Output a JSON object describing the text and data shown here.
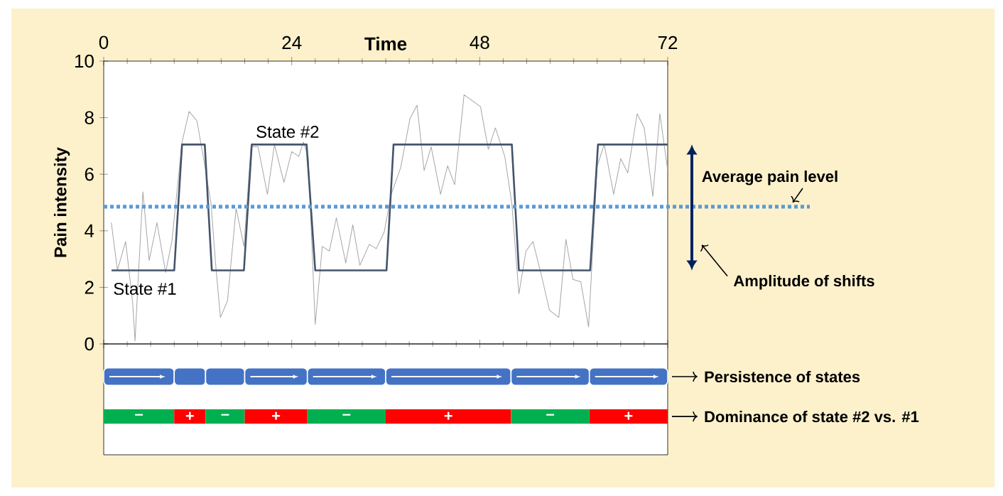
{
  "chart_data": [
    {
      "type": "line",
      "xlabel": "Time",
      "ylabel": "Pain intensity",
      "xlim": [
        0,
        72
      ],
      "xticks": [
        0,
        24,
        48,
        72
      ],
      "ylim": [
        0,
        10
      ],
      "yticks": [
        0,
        2,
        4,
        6,
        8,
        10
      ],
      "series": [
        {
          "color": "#a6a6a6",
          "x": [
            0.97,
            1.75,
            2.8,
            3.7,
            4.0,
            4.3,
            5.0,
            5.8,
            6.8,
            7.9,
            8.7,
            10.0,
            10.9,
            11.9,
            12.8,
            13.7,
            14.3,
            14.9,
            15.8,
            16.9,
            17.9,
            18.8,
            19.7,
            20.9,
            21.8,
            23.0,
            24.0,
            24.9,
            25.5,
            26.1,
            27.0,
            27.9,
            28.8,
            29.7,
            30.9,
            31.8,
            32.7,
            33.9,
            34.8,
            35.8,
            36.7,
            37.9,
            39.1,
            40.0,
            40.9,
            41.8,
            43.0,
            43.9,
            44.8,
            46.0,
            48.1,
            49.1,
            50.0,
            51.2,
            52.1,
            53.0,
            53.9,
            54.8,
            56.0,
            56.9,
            58.1,
            59.0,
            59.9,
            60.9,
            61.9,
            63.0,
            63.9,
            65.1,
            66.0,
            66.9,
            68.1,
            69.0,
            70.1,
            71.0,
            72.0
          ],
          "values": [
            4.29,
            2.61,
            3.62,
            1.44,
            0.1,
            1.77,
            5.38,
            2.95,
            4.29,
            2.53,
            3.62,
            7.14,
            8.22,
            7.89,
            6.47,
            4.96,
            2.78,
            0.94,
            1.52,
            4.79,
            3.45,
            6.97,
            6.97,
            5.29,
            7.05,
            5.71,
            6.8,
            6.63,
            7.14,
            6.63,
            0.69,
            3.45,
            3.28,
            4.46,
            2.86,
            4.21,
            2.78,
            3.52,
            3.37,
            3.95,
            5.29,
            6.22,
            7.97,
            8.44,
            6.13,
            6.97,
            5.29,
            6.3,
            5.63,
            8.81,
            8.39,
            6.88,
            7.64,
            6.63,
            4.96,
            1.77,
            3.28,
            3.62,
            2.28,
            1.19,
            0.94,
            3.7,
            2.28,
            2.2,
            0.6,
            6.3,
            7.05,
            5.29,
            6.55,
            6.05,
            8.14,
            7.64,
            5.21,
            8.14,
            6.13
          ]
        },
        {
          "color": "#44546a",
          "x": [
            1,
            9,
            10,
            12.9,
            13.8,
            17.9,
            18.9,
            25.9,
            27,
            36.1,
            37,
            52.1,
            53,
            62.1,
            63.1,
            72
          ],
          "values": [
            2.6,
            2.6,
            7.05,
            7.05,
            2.6,
            2.6,
            7.05,
            7.05,
            2.6,
            2.6,
            7.05,
            7.05,
            2.6,
            2.6,
            7.05,
            7.05
          ]
        }
      ],
      "ref_lines": [
        {
          "axis": "y",
          "value": 4.85,
          "label": "Average pain level",
          "color": "#5b9bd5",
          "line_style": "dotted"
        }
      ],
      "annotations": [
        "State #1",
        "State #2",
        "Amplitude of shifts"
      ]
    },
    {
      "type": "bar",
      "orientation": "horizontal",
      "categories": [
        "Persistence of states",
        "Dominance of state #2 vs. #1"
      ],
      "xlim": [
        0,
        72
      ],
      "tick_labels": false,
      "series": [
        {
          "base": [
            0,
            0
          ],
          "values": [
            9,
            9
          ],
          "colors": [
            "#4472c4",
            "#00b050"
          ],
          "value_labels": [
            null,
            "–"
          ]
        },
        {
          "base": [
            9,
            9
          ],
          "values": [
            4,
            4
          ],
          "colors": [
            "#4472c4",
            "#ff0000"
          ],
          "value_labels": [
            null,
            "+"
          ]
        },
        {
          "base": [
            13,
            13
          ],
          "values": [
            5,
            5
          ],
          "colors": [
            "#4472c4",
            "#00b050"
          ],
          "value_labels": [
            null,
            "–"
          ]
        },
        {
          "base": [
            18,
            18
          ],
          "values": [
            8,
            8
          ],
          "colors": [
            "#4472c4",
            "#ff0000"
          ],
          "value_labels": [
            null,
            "+"
          ]
        },
        {
          "base": [
            26,
            26
          ],
          "values": [
            10,
            10
          ],
          "colors": [
            "#4472c4",
            "#00b050"
          ],
          "value_labels": [
            null,
            "–"
          ]
        },
        {
          "base": [
            36,
            36
          ],
          "values": [
            16,
            16
          ],
          "colors": [
            "#4472c4",
            "#ff0000"
          ],
          "value_labels": [
            null,
            "+"
          ]
        },
        {
          "base": [
            52,
            52
          ],
          "values": [
            10,
            10
          ],
          "colors": [
            "#4472c4",
            "#00b050"
          ],
          "value_labels": [
            null,
            "–"
          ]
        },
        {
          "base": [
            62,
            62
          ],
          "values": [
            10,
            10
          ],
          "colors": [
            "#4472c4",
            "#ff0000"
          ],
          "value_labels": [
            null,
            "+"
          ]
        }
      ]
    }
  ]
}
